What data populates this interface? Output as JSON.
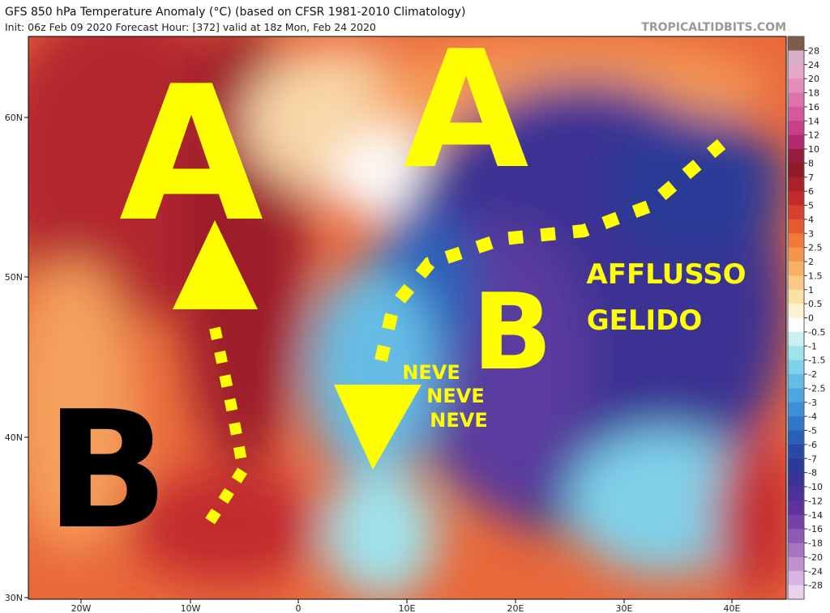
{
  "header": {
    "title": "GFS 850 hPa Temperature Anomaly (°C) (based on CFSR 1981-2010 Climatology)",
    "subtitle": "Init: 06z Feb 09 2020   Forecast Hour: [372]   valid at 18z Mon, Feb 24 2020",
    "site": "TROPICALTIDBITS.COM"
  },
  "map": {
    "lat_labels": [
      "60N",
      "50N",
      "40N",
      "30N"
    ],
    "lon_labels": [
      "20W",
      "10W",
      "0",
      "10E",
      "20E",
      "30E",
      "40E"
    ]
  },
  "colorbar": {
    "levels": [
      28,
      24,
      20,
      18,
      16,
      14,
      12,
      10,
      8,
      7,
      6,
      5,
      4,
      3,
      2.5,
      2,
      1.5,
      1,
      0.5,
      0,
      -0.5,
      -1,
      -1.5,
      -2,
      -2.5,
      -3,
      -4,
      -5,
      -6,
      -7,
      -8,
      -10,
      -12,
      -14,
      -16,
      -18,
      -20,
      -24,
      -28
    ],
    "colors": [
      "#7d5d48",
      "#d8b0c6",
      "#e6a6c6",
      "#e48dba",
      "#dc74ac",
      "#d35b9d",
      "#c7408a",
      "#b22a6d",
      "#951c3c",
      "#8e1b26",
      "#a8222b",
      "#c22a2d",
      "#d6402f",
      "#e45a31",
      "#ee7a3c",
      "#f4954d",
      "#f8af66",
      "#fbc983",
      "#fde0a6",
      "#fff2d2",
      "#ffffff",
      "#c9f0f2",
      "#9fe3ec",
      "#7fd2ea",
      "#65bde6",
      "#50a7df",
      "#3f8fd5",
      "#3277c7",
      "#2a5fb8",
      "#2849a6",
      "#2c3a97",
      "#3a3393",
      "#4d3198",
      "#60329e",
      "#7642a8",
      "#8c59b5",
      "#a574c3",
      "#bf92d2",
      "#d7b4e1",
      "#e9d2ec"
    ]
  },
  "annotations": {
    "a_west": "A",
    "a_north": "A",
    "b_west": "B",
    "b_east": "B",
    "neve": [
      "NEVE",
      "NEVE",
      "NEVE"
    ],
    "afflusso": "AFFLUSSO",
    "gelido": "GELIDO"
  }
}
